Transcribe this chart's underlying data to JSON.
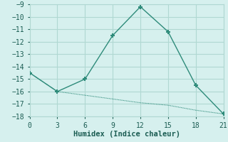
{
  "line1_x": [
    0,
    3,
    6,
    9,
    12,
    15,
    18,
    21
  ],
  "line1_y": [
    -14.5,
    -16.0,
    -15.0,
    -11.5,
    -9.2,
    -11.2,
    -15.5,
    -17.8
  ],
  "line2_x": [
    0,
    3,
    6,
    9,
    12,
    15,
    18,
    21
  ],
  "line2_y": [
    -14.5,
    -16.0,
    -16.3,
    -16.6,
    -16.9,
    -17.1,
    -17.5,
    -17.8
  ],
  "line_color": "#2e8b7a",
  "marker": "P",
  "bg_color": "#d6f0ee",
  "grid_color": "#b0d8d2",
  "xlabel": "Humidex (Indice chaleur)",
  "xlim": [
    0,
    21
  ],
  "ylim": [
    -18,
    -9
  ],
  "xticks": [
    0,
    3,
    6,
    9,
    12,
    15,
    18,
    21
  ],
  "yticks": [
    -9,
    -10,
    -11,
    -12,
    -13,
    -14,
    -15,
    -16,
    -17,
    -18
  ],
  "font_color": "#1a5c52",
  "font_family": "monospace",
  "xlabel_fontsize": 7.5,
  "tick_fontsize": 7
}
